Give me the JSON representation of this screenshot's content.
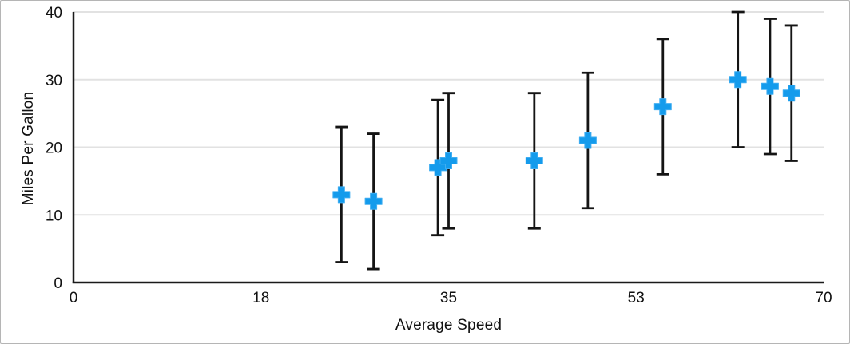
{
  "figure": {
    "background_color": "#ffffff",
    "border_color": "#b5b5b5"
  },
  "chart_data": {
    "type": "scatter",
    "title": "",
    "xlabel": "Average Speed",
    "ylabel": "Miles Per Gallon",
    "xlim": [
      0,
      70
    ],
    "ylim": [
      0,
      40
    ],
    "x_ticks": {
      "values": [
        0,
        17.5,
        35,
        52.5,
        70
      ],
      "labels": [
        "0",
        "18",
        "35",
        "53",
        "70"
      ]
    },
    "y_ticks": {
      "values": [
        0,
        10,
        20,
        30,
        40
      ],
      "labels": [
        "0",
        "10",
        "20",
        "30",
        "40"
      ]
    },
    "grid": "horizontal",
    "legend": "none",
    "colors": {
      "marker": "#149BEC",
      "error_bar": "#141414",
      "axis": "#1a1a1a",
      "gridline": "#e2e2e2",
      "text": "#111111"
    },
    "series": [
      {
        "name": "Miles Per Gallon",
        "marker": "plus",
        "error_y_plus": 10,
        "error_y_minus": 10,
        "points": [
          {
            "x": 25,
            "y": 13
          },
          {
            "x": 28,
            "y": 12
          },
          {
            "x": 34,
            "y": 17
          },
          {
            "x": 35,
            "y": 18
          },
          {
            "x": 43,
            "y": 18
          },
          {
            "x": 48,
            "y": 21
          },
          {
            "x": 55,
            "y": 26
          },
          {
            "x": 62,
            "y": 30
          },
          {
            "x": 65,
            "y": 29
          },
          {
            "x": 67,
            "y": 28
          }
        ]
      }
    ]
  }
}
